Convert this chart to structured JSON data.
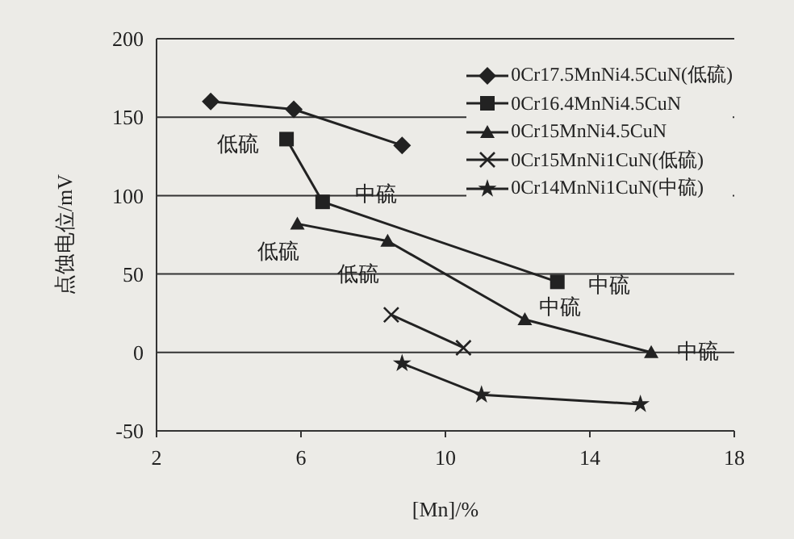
{
  "chart_data": {
    "type": "line",
    "xlabel": "[Mn]/%",
    "ylabel": "点蚀电位/mV",
    "xlim": [
      2,
      18
    ],
    "xticks": [
      2,
      6,
      10,
      14,
      18
    ],
    "ylim": [
      -50,
      200
    ],
    "yticks": [
      -50,
      0,
      50,
      100,
      150,
      200
    ],
    "grid": "y",
    "legend": "top right",
    "series": [
      {
        "name": "0Cr17.5MnNi4.5CuN(低硫)",
        "color": "#222222",
        "marker": "diamond",
        "x": [
          3.5,
          5.8,
          8.8
        ],
        "values": [
          160,
          155,
          132
        ]
      },
      {
        "name": "0Cr16.4MnNi4.5CuN",
        "color": "#222222",
        "marker": "square",
        "x": [
          5.6,
          6.6,
          13.1
        ],
        "values": [
          136,
          96,
          45
        ]
      },
      {
        "name": "0Cr15MnNi4.5CuN",
        "color": "#222222",
        "marker": "triangle",
        "x": [
          5.9,
          8.4,
          12.2,
          15.7
        ],
        "values": [
          82,
          71,
          21,
          0
        ]
      },
      {
        "name": "0Cr15MnNi1CuN(低硫)",
        "color": "#222222",
        "marker": "cross",
        "x": [
          8.5,
          10.5
        ],
        "values": [
          24,
          3
        ]
      },
      {
        "name": "0Cr14MnNi1CuN(中硫)",
        "color": "#222222",
        "marker": "star",
        "x": [
          8.8,
          11.0,
          15.4
        ],
        "values": [
          -7,
          -27,
          -33
        ]
      }
    ],
    "annotations": [
      {
        "text": "低硫",
        "x": 5.6,
        "y": 136
      },
      {
        "text": "中硫",
        "x": 6.6,
        "y": 96
      },
      {
        "text": "低硫",
        "x": 5.9,
        "y": 82
      },
      {
        "text": "低硫",
        "x": 8.4,
        "y": 71
      },
      {
        "text": "中硫",
        "x": 13.1,
        "y": 45
      },
      {
        "text": "中硫",
        "x": 12.2,
        "y": 21
      },
      {
        "text": "中硫",
        "x": 15.7,
        "y": 0
      }
    ]
  }
}
